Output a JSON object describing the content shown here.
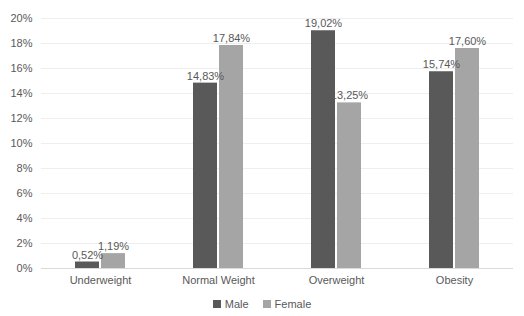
{
  "chart_data": {
    "type": "bar",
    "categories": [
      "Underweight",
      "Normal Weight",
      "Overweight",
      "Obesity"
    ],
    "series": [
      {
        "name": "Male",
        "color": "#595959",
        "values": [
          0.52,
          14.83,
          19.02,
          15.74
        ],
        "value_labels": [
          "0,52%",
          "14,83%",
          "19,02%",
          "15,74%"
        ]
      },
      {
        "name": "Female",
        "color": "#a5a5a5",
        "values": [
          1.19,
          17.84,
          13.25,
          17.6
        ],
        "value_labels": [
          "1,19%",
          "17,84%",
          "13,25%",
          "17,60%"
        ]
      }
    ],
    "ylim": [
      0,
      20
    ],
    "yticks": [
      {
        "value": 0,
        "label": "0%"
      },
      {
        "value": 2,
        "label": "2%"
      },
      {
        "value": 4,
        "label": "4%"
      },
      {
        "value": 6,
        "label": "6%"
      },
      {
        "value": 8,
        "label": "8%"
      },
      {
        "value": 10,
        "label": "10%"
      },
      {
        "value": 12,
        "label": "12%"
      },
      {
        "value": 14,
        "label": "14%"
      },
      {
        "value": 16,
        "label": "16%"
      },
      {
        "value": 18,
        "label": "18%"
      },
      {
        "value": 20,
        "label": "20%"
      }
    ],
    "grid": true,
    "data_labels": true,
    "legend": "bottom"
  }
}
